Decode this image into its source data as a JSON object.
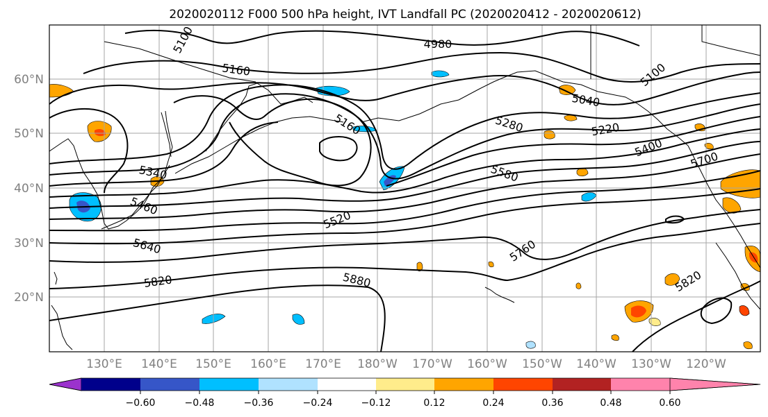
{
  "title": "2020020112 F000 500 hPa height, IVT Landfall PC (2020020412 - 2020020612)",
  "lat_labels": [
    "60°N",
    "50°N",
    "40°N",
    "30°N",
    "20°N"
  ],
  "lon_labels": [
    "130°E",
    "140°E",
    "150°E",
    "160°E",
    "170°E",
    "180°W",
    "170°W",
    "160°W",
    "150°W",
    "140°W",
    "130°W",
    "120°W"
  ],
  "contour_labels": [
    "5100",
    "4980",
    "5160",
    "5100",
    "5040",
    "5160",
    "5280",
    "5220",
    "5400",
    "5700",
    "5340",
    "5580",
    "5460",
    "5520",
    "5640",
    "5760",
    "5820",
    "5880",
    "5820"
  ],
  "colorbar": {
    "ticks": [
      "−0.60",
      "−0.48",
      "−0.36",
      "−0.24",
      "−0.12",
      "0.12",
      "0.24",
      "0.36",
      "0.48",
      "0.60"
    ],
    "colors": [
      "#9b32cd",
      "#00008b",
      "#3656c8",
      "#00bfff",
      "#b0e2ff",
      "#ffffff",
      "#ffec8b",
      "#ffa500",
      "#ff4500",
      "#b22222",
      "#ff83ac"
    ]
  }
}
